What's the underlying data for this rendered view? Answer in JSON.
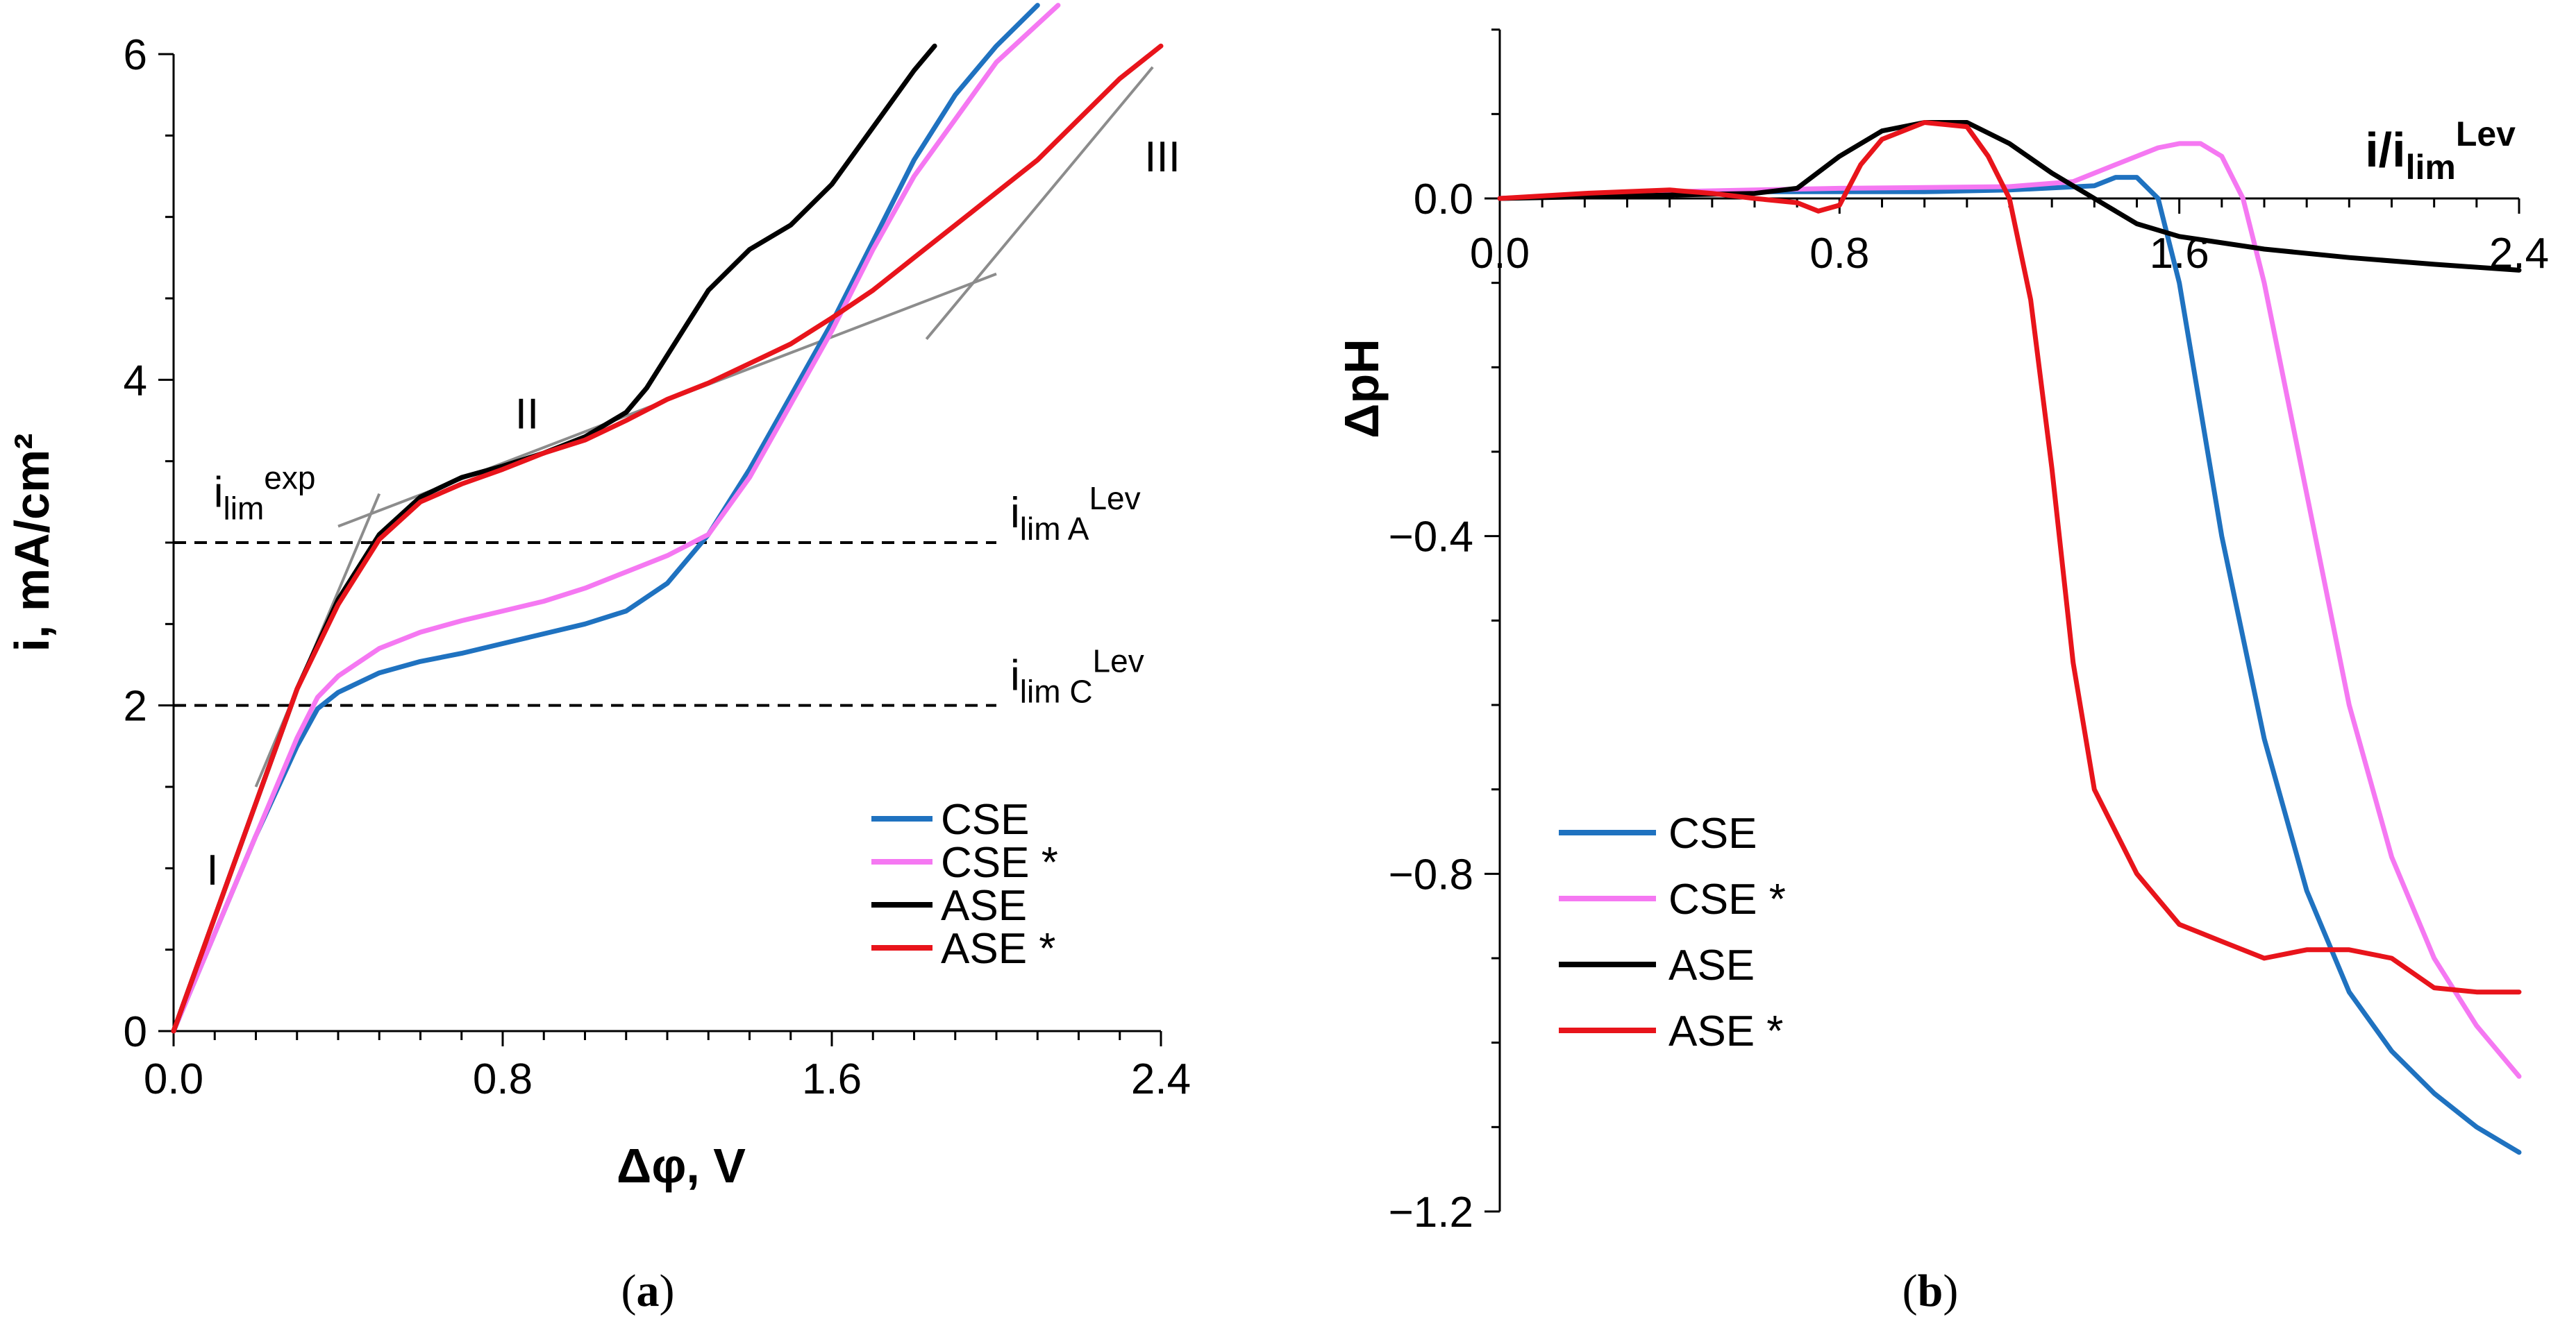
{
  "chart_data": [
    {
      "type": "line",
      "panel_label": "a",
      "xlabel": "Δφ, V",
      "ylabel": "i, mA/cm²",
      "xlim": [
        0,
        2.4
      ],
      "ylim": [
        0,
        6
      ],
      "xticks": [
        "0.0",
        "0.8",
        "1.6",
        "2.4"
      ],
      "yticks": [
        "0",
        "2",
        "4",
        "6"
      ],
      "series": [
        {
          "name": "CSE",
          "color": "#1f72c0",
          "x": [
            0,
            0.1,
            0.2,
            0.3,
            0.35,
            0.4,
            0.5,
            0.6,
            0.7,
            0.8,
            0.9,
            1.0,
            1.1,
            1.2,
            1.3,
            1.4,
            1.5,
            1.6,
            1.7,
            1.8,
            1.9,
            2.0,
            2.1
          ],
          "y": [
            0,
            0.6,
            1.2,
            1.75,
            1.98,
            2.08,
            2.2,
            2.27,
            2.32,
            2.38,
            2.44,
            2.5,
            2.58,
            2.75,
            3.05,
            3.45,
            3.9,
            4.35,
            4.85,
            5.35,
            5.75,
            6.05,
            6.3
          ]
        },
        {
          "name": "CSE *",
          "color": "#f578f2",
          "x": [
            0,
            0.1,
            0.2,
            0.3,
            0.35,
            0.4,
            0.5,
            0.6,
            0.7,
            0.8,
            0.9,
            1.0,
            1.1,
            1.2,
            1.3,
            1.4,
            1.5,
            1.6,
            1.7,
            1.8,
            1.9,
            2.0,
            2.15
          ],
          "y": [
            0,
            0.6,
            1.2,
            1.8,
            2.05,
            2.18,
            2.35,
            2.45,
            2.52,
            2.58,
            2.64,
            2.72,
            2.82,
            2.92,
            3.05,
            3.4,
            3.85,
            4.3,
            4.8,
            5.25,
            5.6,
            5.95,
            6.3
          ]
        },
        {
          "name": "ASE",
          "color": "#000000",
          "x": [
            0,
            0.1,
            0.2,
            0.3,
            0.4,
            0.5,
            0.6,
            0.7,
            0.8,
            0.9,
            1.0,
            1.1,
            1.15,
            1.2,
            1.25,
            1.3,
            1.4,
            1.5,
            1.6,
            1.7,
            1.8,
            1.85
          ],
          "y": [
            0,
            0.7,
            1.4,
            2.1,
            2.65,
            3.05,
            3.28,
            3.4,
            3.47,
            3.55,
            3.65,
            3.8,
            3.95,
            4.15,
            4.35,
            4.55,
            4.8,
            4.95,
            5.2,
            5.55,
            5.9,
            6.05
          ]
        },
        {
          "name": "ASE *",
          "color": "#e8141b",
          "x": [
            0,
            0.1,
            0.2,
            0.3,
            0.4,
            0.5,
            0.6,
            0.7,
            0.8,
            0.9,
            1.0,
            1.1,
            1.2,
            1.3,
            1.4,
            1.5,
            1.6,
            1.7,
            1.8,
            1.9,
            2.0,
            2.1,
            2.2,
            2.3,
            2.4
          ],
          "y": [
            0,
            0.7,
            1.4,
            2.1,
            2.62,
            3.02,
            3.25,
            3.36,
            3.45,
            3.55,
            3.63,
            3.75,
            3.88,
            3.98,
            4.1,
            4.22,
            4.38,
            4.55,
            4.75,
            4.95,
            5.15,
            5.35,
            5.6,
            5.85,
            6.05
          ]
        }
      ],
      "hlines": [
        {
          "y": 3,
          "x": [
            0,
            2.0
          ],
          "label_main": "i",
          "label_sub": "lim A",
          "label_sup": "Lev"
        },
        {
          "y": 2,
          "x": [
            0,
            2.0
          ],
          "label_main": "i",
          "label_sub": "lim C",
          "label_sup": "Lev"
        }
      ],
      "tangents": [
        {
          "x": [
            0.2,
            0.5
          ],
          "y": [
            1.5,
            3.3
          ]
        },
        {
          "x": [
            0.4,
            2.0
          ],
          "y": [
            3.1,
            4.65
          ]
        },
        {
          "x": [
            1.83,
            2.38
          ],
          "y": [
            4.25,
            5.92
          ]
        }
      ],
      "annotations": [
        {
          "text": "I",
          "x": 0.08,
          "y": 0.9
        },
        {
          "text": "II",
          "x": 0.83,
          "y": 3.7
        },
        {
          "text": "III",
          "x": 2.36,
          "y": 5.28
        },
        {
          "text_main": "i",
          "text_sub": "lim",
          "text_sup": "exp",
          "x": 0.3,
          "y": 3.22
        }
      ],
      "legend": "lower-right"
    },
    {
      "type": "line",
      "panel_label": "b",
      "xlabel_main": "i/i",
      "xlabel_sub": "lim",
      "xlabel_sup": "Lev",
      "ylabel": "ΔpH",
      "xlim": [
        0,
        2.4
      ],
      "ylim": [
        -1.2,
        0.2
      ],
      "xticks": [
        "0.0",
        "0.8",
        "1.6",
        "2.4"
      ],
      "yticks": [
        "0.0",
        "−0.4",
        "−0.8",
        "−1.2"
      ],
      "series": [
        {
          "name": "CSE",
          "color": "#1f72c0",
          "x": [
            0,
            0.2,
            0.4,
            0.6,
            0.8,
            1.0,
            1.2,
            1.4,
            1.45,
            1.5,
            1.55,
            1.6,
            1.65,
            1.7,
            1.8,
            1.9,
            2.0,
            2.1,
            2.2,
            2.3,
            2.4
          ],
          "y": [
            0,
            0.003,
            0.006,
            0.008,
            0.008,
            0.008,
            0.01,
            0.015,
            0.025,
            0.025,
            0.0,
            -0.1,
            -0.25,
            -0.4,
            -0.64,
            -0.82,
            -0.94,
            -1.01,
            -1.06,
            -1.1,
            -1.13
          ]
        },
        {
          "name": "CSE *",
          "color": "#f578f2",
          "x": [
            0,
            0.2,
            0.4,
            0.6,
            0.8,
            1.0,
            1.2,
            1.35,
            1.45,
            1.55,
            1.6,
            1.65,
            1.7,
            1.75,
            1.8,
            1.9,
            2.0,
            2.1,
            2.2,
            2.3,
            2.4
          ],
          "y": [
            0,
            0.005,
            0.008,
            0.01,
            0.012,
            0.013,
            0.014,
            0.02,
            0.04,
            0.06,
            0.065,
            0.065,
            0.05,
            0.0,
            -0.1,
            -0.35,
            -0.6,
            -0.78,
            -0.9,
            -0.98,
            -1.04
          ]
        },
        {
          "name": "ASE",
          "color": "#000000",
          "x": [
            0,
            0.2,
            0.4,
            0.6,
            0.7,
            0.8,
            0.9,
            1.0,
            1.1,
            1.2,
            1.3,
            1.4,
            1.5,
            1.6,
            1.8,
            2.0,
            2.2,
            2.4
          ],
          "y": [
            0,
            0.002,
            0.004,
            0.006,
            0.012,
            0.05,
            0.08,
            0.09,
            0.09,
            0.065,
            0.03,
            0.0,
            -0.03,
            -0.045,
            -0.06,
            -0.07,
            -0.078,
            -0.085
          ]
        },
        {
          "name": "ASE *",
          "color": "#e8141b",
          "x": [
            0,
            0.2,
            0.4,
            0.5,
            0.6,
            0.7,
            0.75,
            0.8,
            0.85,
            0.9,
            1.0,
            1.1,
            1.15,
            1.2,
            1.25,
            1.3,
            1.35,
            1.4,
            1.5,
            1.6,
            1.7,
            1.8,
            1.9,
            2.0,
            2.1,
            2.2,
            2.3,
            2.4
          ],
          "y": [
            0,
            0.006,
            0.01,
            0.006,
            0.0,
            -0.005,
            -0.015,
            -0.008,
            0.04,
            0.07,
            0.09,
            0.085,
            0.05,
            0.0,
            -0.12,
            -0.32,
            -0.55,
            -0.7,
            -0.8,
            -0.86,
            -0.88,
            -0.9,
            -0.89,
            -0.89,
            -0.9,
            -0.935,
            -0.94,
            -0.94
          ]
        }
      ],
      "legend": "lower-left"
    }
  ]
}
